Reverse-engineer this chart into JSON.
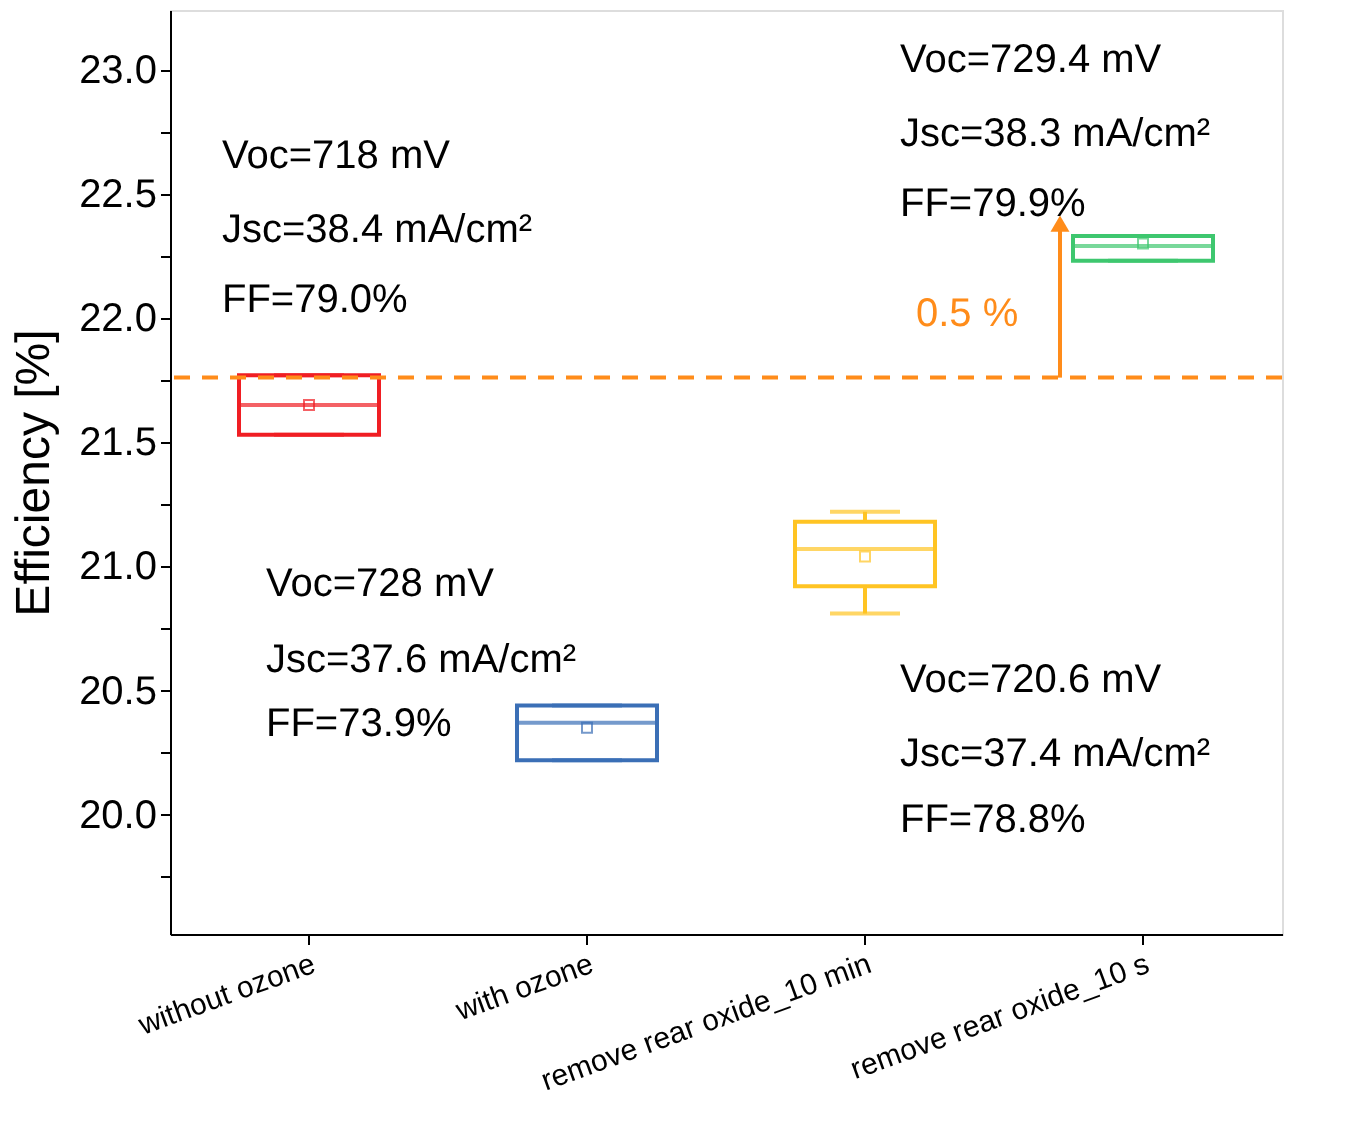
{
  "chart_data": {
    "type": "box",
    "ylabel": "Efficiency [%]",
    "categories": [
      "without ozone",
      "with ozone",
      "remove rear oxide_10 min",
      "remove rear oxide_10 s"
    ],
    "colors": [
      "#f01e23",
      "#3b6fb6",
      "#ffc423",
      "#3ec76f"
    ],
    "boxes": [
      {
        "low": 21.53,
        "q1": 21.53,
        "median": 21.65,
        "q3": 21.77,
        "high": 21.77,
        "mean": 21.65
      },
      {
        "low": 20.22,
        "q1": 20.22,
        "median": 20.37,
        "q3": 20.44,
        "high": 20.44,
        "mean": 20.35
      },
      {
        "low": 20.81,
        "q1": 20.92,
        "median": 21.07,
        "q3": 21.18,
        "high": 21.22,
        "mean": 21.04
      },
      {
        "low": 22.23,
        "q1": 22.23,
        "median": 22.29,
        "q3": 22.33,
        "high": 22.33,
        "mean": 22.3
      }
    ],
    "ylim": [
      19.52,
      23.24
    ],
    "yticks": [
      {
        "value": 19.75,
        "label": null
      },
      {
        "value": 20.0,
        "label": "20.0"
      },
      {
        "value": 20.25,
        "label": null
      },
      {
        "value": 20.5,
        "label": "20.5"
      },
      {
        "value": 20.75,
        "label": null
      },
      {
        "value": 21.0,
        "label": "21.0"
      },
      {
        "value": 21.25,
        "label": null
      },
      {
        "value": 21.5,
        "label": "21.5"
      },
      {
        "value": 21.75,
        "label": null
      },
      {
        "value": 22.0,
        "label": "22.0"
      },
      {
        "value": 22.25,
        "label": null
      },
      {
        "value": 22.5,
        "label": "22.5"
      },
      {
        "value": 22.75,
        "label": null
      },
      {
        "value": 23.0,
        "label": "23.0"
      }
    ],
    "ref_lines": [
      {
        "axis": "y",
        "value": 21.76,
        "color": "#ff8c1a",
        "line_style": "dashed"
      }
    ],
    "annotations": [
      "Voc=718 mV",
      "Jsc=38.4 mA/cm²",
      "FF=79.0%",
      "Voc=728 mV",
      "Jsc=37.6 mA/cm²",
      "FF=73.9%",
      "Voc=720.6 mV",
      "Jsc=37.4 mA/cm²",
      "FF=78.8%",
      "Voc=729.4 mV",
      "Jsc=38.3 mA/cm²",
      "FF=79.9%",
      "0.5 %"
    ],
    "grid": false
  }
}
